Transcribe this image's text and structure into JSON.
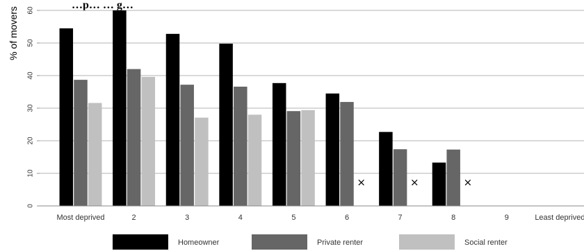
{
  "chart_data": {
    "type": "bar",
    "title": "…p… … g…",
    "ylabel": "% of movers",
    "xlabel": "",
    "ylim": [
      0,
      60
    ],
    "yticks": [
      0,
      10,
      20,
      30,
      40,
      50,
      60
    ],
    "categories": [
      "Most deprived",
      "2",
      "3",
      "4",
      "5",
      "6",
      "7",
      "8",
      "9",
      "Least deprived"
    ],
    "series": [
      {
        "name": "Homeowner",
        "color": "#000000",
        "values": [
          54.5,
          60,
          52.8,
          49.8,
          37.7,
          34.5,
          22.7,
          13.3,
          null,
          null
        ]
      },
      {
        "name": "Private renter",
        "color": "#666666",
        "values": [
          38.7,
          42,
          37.2,
          36.6,
          29.1,
          31.9,
          17.4,
          17.3,
          null,
          null
        ]
      },
      {
        "name": "Social renter",
        "color": "#c0c0c0",
        "values": [
          31.6,
          39.6,
          27.1,
          28.0,
          29.4,
          null,
          null,
          null,
          null,
          null
        ]
      }
    ],
    "missing_marker": "×",
    "missing_marks": [
      {
        "category_index": 5,
        "series_index": 2
      },
      {
        "category_index": 6,
        "series_index": 2
      },
      {
        "category_index": 7,
        "series_index": 2
      }
    ],
    "grid": true,
    "legend_position": "bottom"
  }
}
